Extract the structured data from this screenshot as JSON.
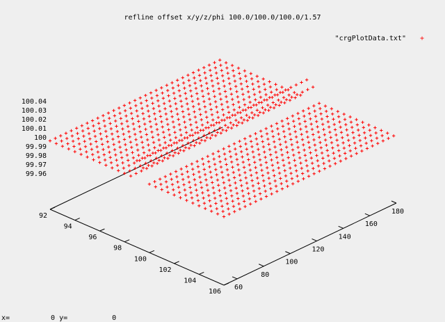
{
  "chart_data": {
    "type": "scatter",
    "title": "refline offset x/y/z/phi 100.0/100.0/100.0/1.57",
    "legend": {
      "label": "\"crgPlotData.txt\"",
      "marker": "+",
      "color": "#ff0000",
      "placement": "top-right"
    },
    "x_axis": {
      "range": [
        92,
        106
      ],
      "ticks": [
        92,
        94,
        96,
        98,
        100,
        102,
        104,
        106
      ]
    },
    "y_axis": {
      "range": [
        50,
        180
      ],
      "ticks": [
        60,
        80,
        100,
        120,
        140,
        160,
        180
      ]
    },
    "z_axis": {
      "range": [
        99.95,
        100.04
      ],
      "ticks": [
        99.96,
        99.97,
        99.98,
        99.99,
        100,
        100.01,
        100.02,
        100.03,
        100.04
      ]
    },
    "series": [
      {
        "name": "\"crgPlotData.txt\"",
        "description": "grid surface of road points, mostly flat at z=100",
        "grid": {
          "x_from": 92,
          "x_to": 106,
          "x_step": 0.5,
          "y_from": 50,
          "y_to": 180,
          "y_step": 4,
          "z": 100
        }
      }
    ]
  },
  "status_bar": {
    "x_label": "x=",
    "x_value": "0",
    "y_label": "y=",
    "y_value": "0"
  }
}
